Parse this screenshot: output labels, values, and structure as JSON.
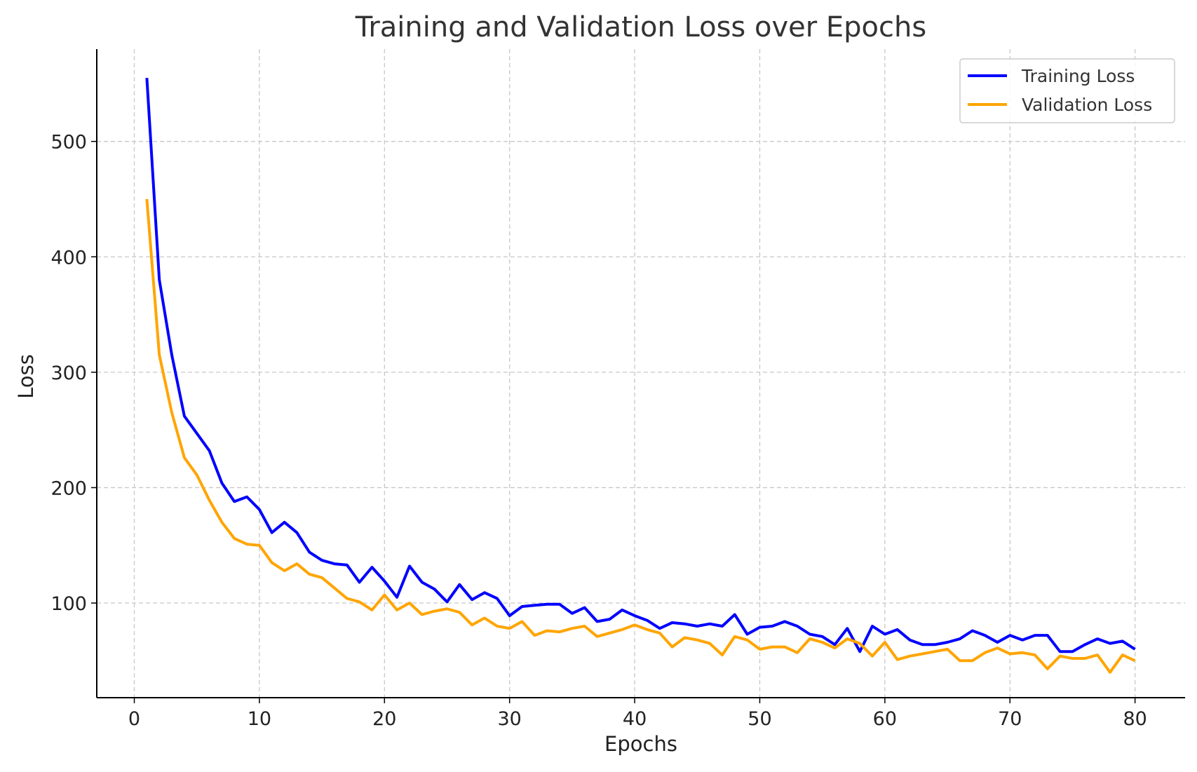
{
  "chart_data": {
    "type": "line",
    "title": "Training and Validation Loss over Epochs",
    "xlabel": "Epochs",
    "ylabel": "Loss",
    "xlim": [
      -3,
      84
    ],
    "ylim": [
      18,
      580
    ],
    "xticks": [
      0,
      10,
      20,
      30,
      40,
      50,
      60,
      70,
      80
    ],
    "yticks": [
      100,
      200,
      300,
      400,
      500
    ],
    "grid": true,
    "legend_position": "top-right",
    "x": [
      1,
      2,
      3,
      4,
      5,
      6,
      7,
      8,
      9,
      10,
      11,
      12,
      13,
      14,
      15,
      16,
      17,
      18,
      19,
      20,
      21,
      22,
      23,
      24,
      25,
      26,
      27,
      28,
      29,
      30,
      31,
      32,
      33,
      34,
      35,
      36,
      37,
      38,
      39,
      40,
      41,
      42,
      43,
      44,
      45,
      46,
      47,
      48,
      49,
      50,
      51,
      52,
      53,
      54,
      55,
      56,
      57,
      58,
      59,
      60,
      61,
      62,
      63,
      64,
      65,
      66,
      67,
      68,
      69,
      70,
      71,
      72,
      73,
      74,
      75,
      76,
      77,
      78,
      79,
      80
    ],
    "series": [
      {
        "name": "Training Loss",
        "color": "#0000ff",
        "values": [
          555,
          380,
          315,
          262,
          247,
          232,
          204,
          188,
          192,
          181,
          161,
          170,
          161,
          144,
          137,
          134,
          133,
          118,
          131,
          119,
          105,
          132,
          118,
          112,
          101,
          116,
          103,
          109,
          104,
          89,
          97,
          98,
          99,
          99,
          91,
          96,
          84,
          86,
          94,
          89,
          85,
          78,
          83,
          82,
          80,
          82,
          80,
          90,
          73,
          79,
          80,
          84,
          80,
          73,
          71,
          64,
          78,
          58,
          80,
          73,
          77,
          68,
          64,
          64,
          66,
          69,
          76,
          72,
          66,
          72,
          68,
          72,
          72,
          58,
          58,
          64,
          69,
          65,
          67,
          60
        ],
        "legend_label": "Training Loss"
      },
      {
        "name": "Validation Loss",
        "color": "#ffa500",
        "values": [
          450,
          315,
          265,
          226,
          211,
          189,
          170,
          156,
          151,
          150,
          135,
          128,
          134,
          125,
          122,
          113,
          104,
          101,
          94,
          107,
          94,
          100,
          90,
          93,
          95,
          92,
          81,
          87,
          80,
          78,
          84,
          72,
          76,
          75,
          78,
          80,
          71,
          74,
          77,
          81,
          77,
          74,
          62,
          70,
          68,
          65,
          55,
          71,
          68,
          60,
          62,
          62,
          57,
          69,
          66,
          61,
          69,
          65,
          54,
          66,
          51,
          54,
          56,
          58,
          60,
          50,
          50,
          57,
          61,
          56,
          57,
          55,
          43,
          54,
          52,
          52,
          55,
          40,
          55,
          50
        ],
        "legend_label": "Validation Loss"
      }
    ]
  }
}
